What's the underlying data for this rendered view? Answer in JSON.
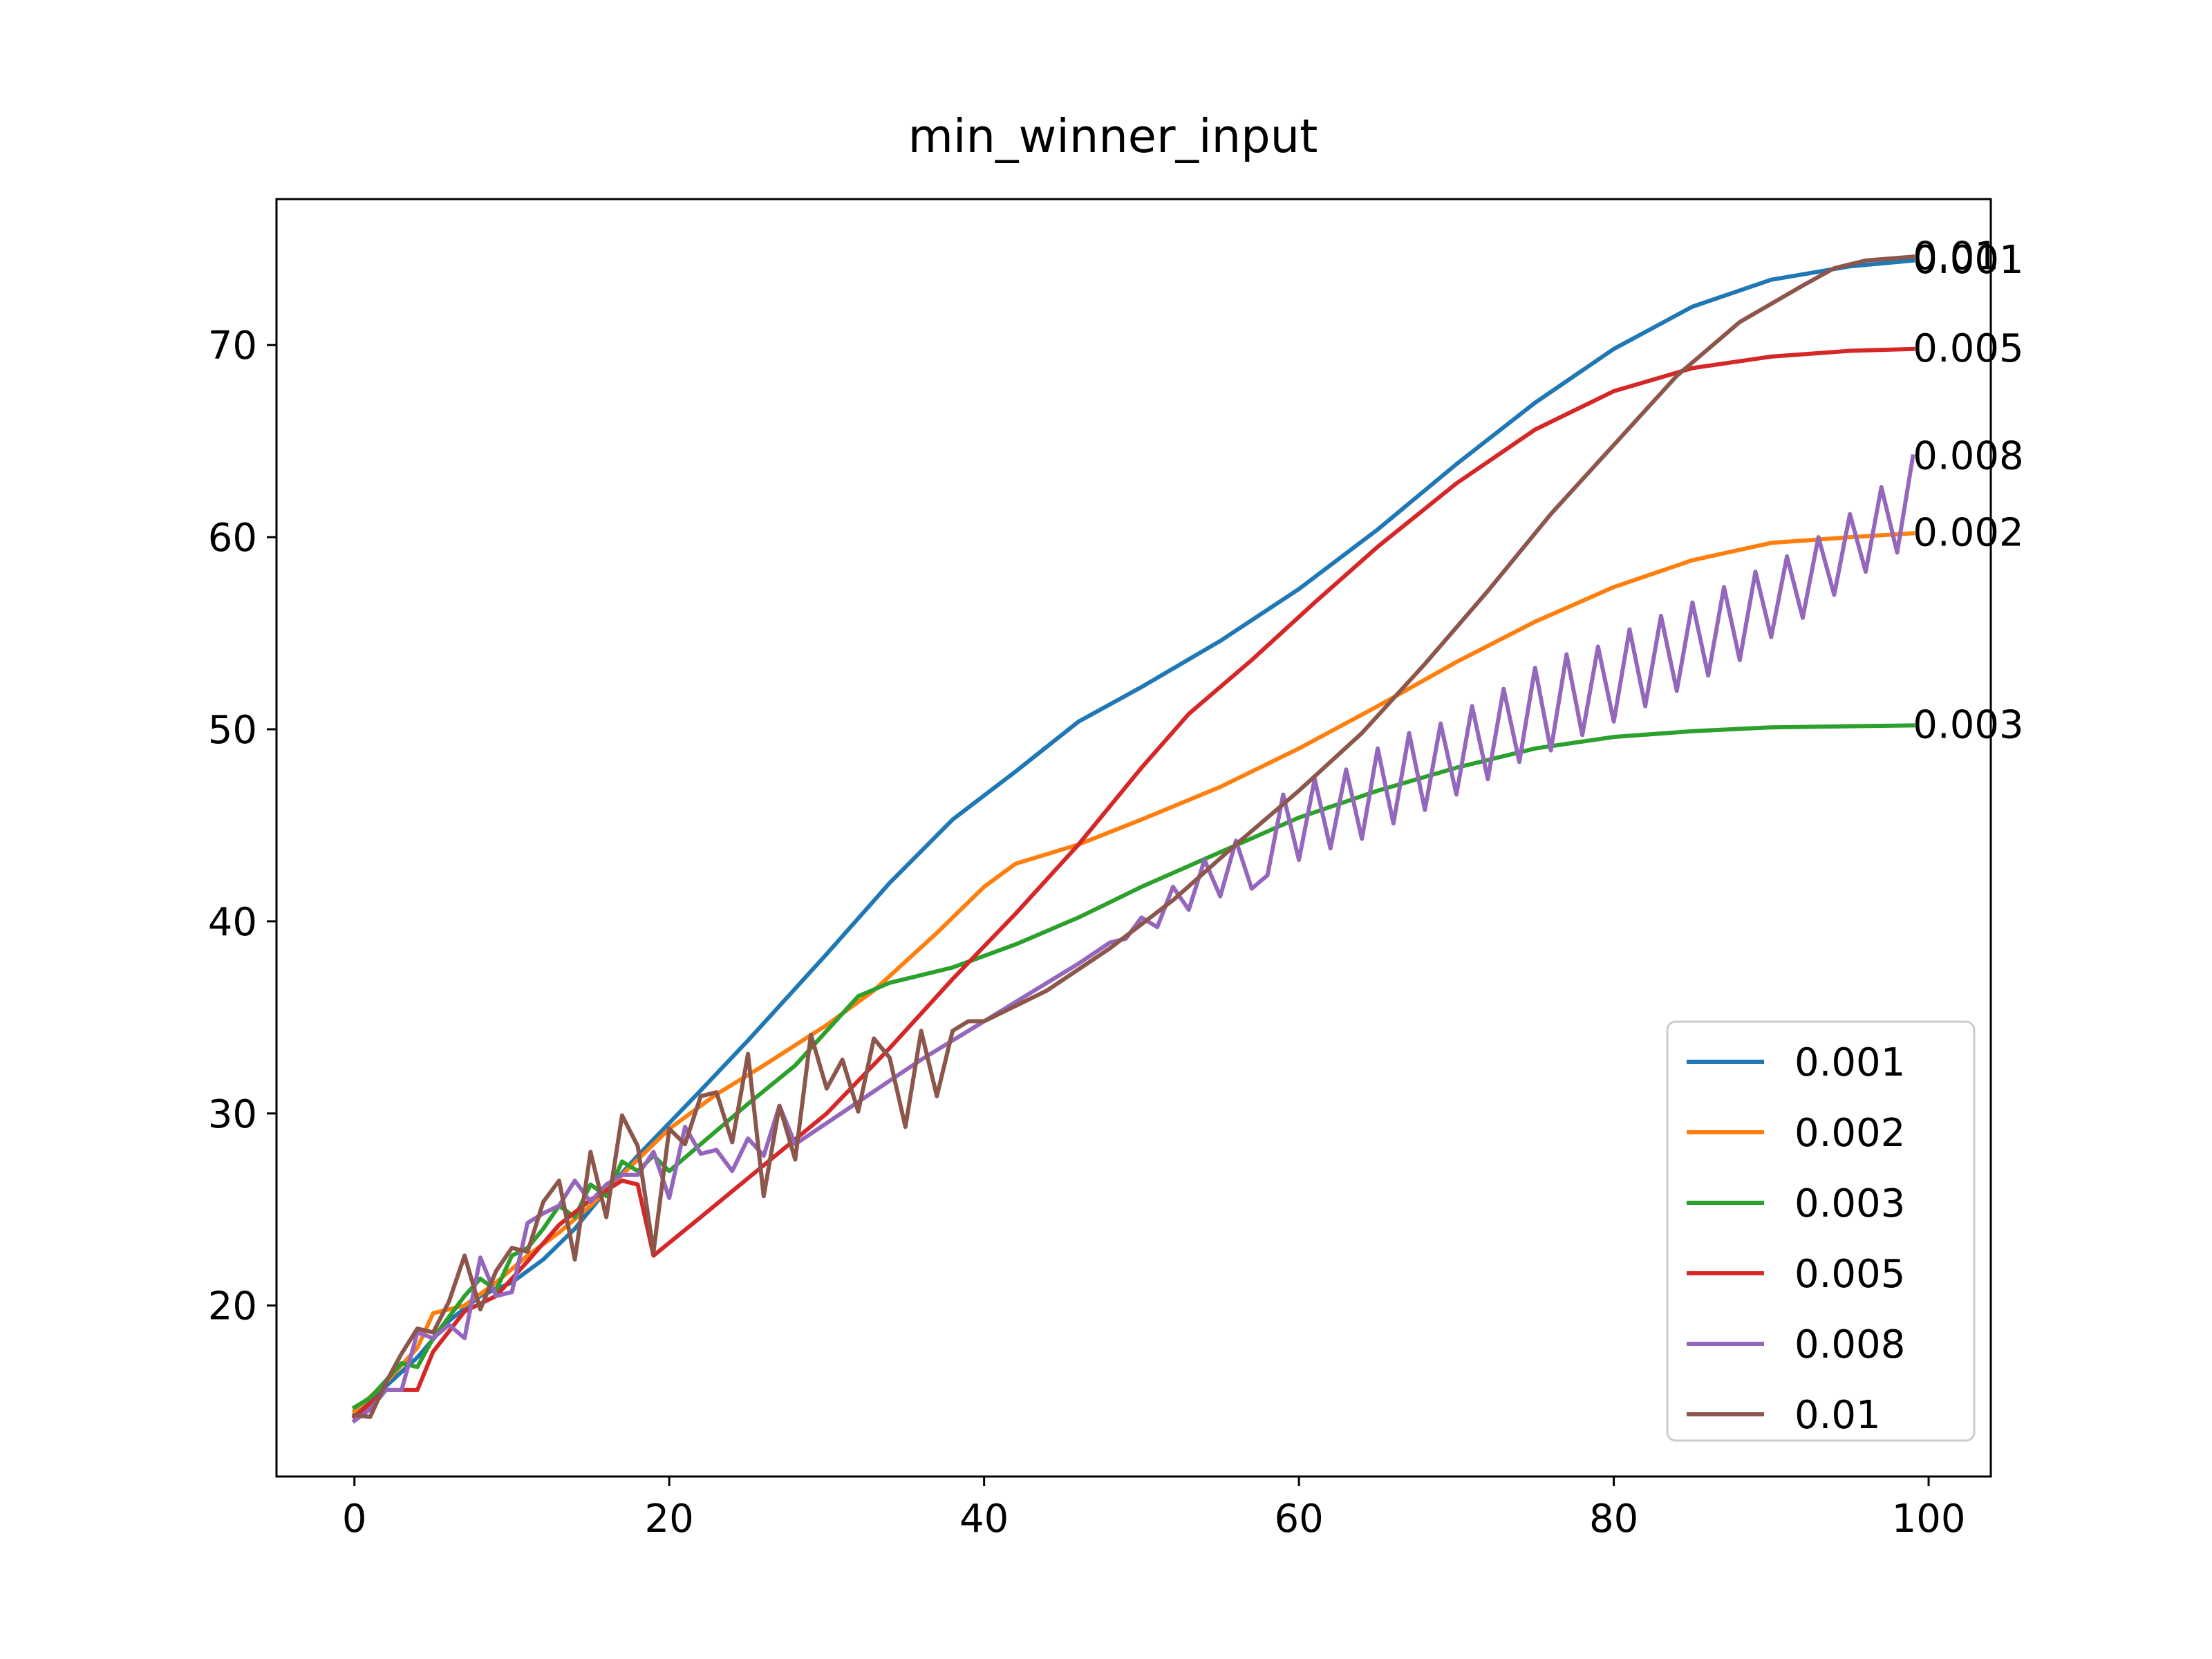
{
  "chart_data": {
    "type": "line",
    "title": "min_winner_input",
    "xlabel": "",
    "ylabel": "",
    "xlim": [
      -4.95,
      103.95
    ],
    "ylim": [
      11.1,
      77.6
    ],
    "xticks": [
      0,
      20,
      40,
      60,
      80,
      100
    ],
    "yticks": [
      20,
      30,
      40,
      50,
      60,
      70
    ],
    "xtick_labels": [
      "0",
      "20",
      "40",
      "60",
      "80",
      "100"
    ],
    "ytick_labels": [
      "20",
      "30",
      "40",
      "50",
      "60",
      "70"
    ],
    "grid": false,
    "legend_position": "lower-right",
    "series": [
      {
        "name": "0.001",
        "color": "#1f77b4",
        "end_label": "0.001",
        "points": [
          [
            0,
            14.3
          ],
          [
            2,
            15.8
          ],
          [
            4,
            17.3
          ],
          [
            6,
            19.2
          ],
          [
            8,
            20.5
          ],
          [
            10,
            21.2
          ],
          [
            12,
            22.4
          ],
          [
            14,
            24.0
          ],
          [
            16,
            26.0
          ],
          [
            18,
            27.8
          ],
          [
            20,
            29.5
          ],
          [
            22,
            31.2
          ],
          [
            25,
            33.8
          ],
          [
            30,
            38.3
          ],
          [
            34,
            42.0
          ],
          [
            38,
            45.3
          ],
          [
            42,
            47.8
          ],
          [
            46,
            50.4
          ],
          [
            50,
            52.2
          ],
          [
            55,
            54.6
          ],
          [
            60,
            57.3
          ],
          [
            65,
            60.4
          ],
          [
            70,
            63.8
          ],
          [
            75,
            67.0
          ],
          [
            80,
            69.8
          ],
          [
            85,
            72.0
          ],
          [
            90,
            73.4
          ],
          [
            95,
            74.1
          ],
          [
            99,
            74.4
          ]
        ]
      },
      {
        "name": "0.002",
        "color": "#ff7f0e",
        "end_label": "0.002",
        "points": [
          [
            0,
            14.5
          ],
          [
            2,
            16.0
          ],
          [
            4,
            17.8
          ],
          [
            5,
            19.6
          ],
          [
            7,
            20.0
          ],
          [
            9,
            21.2
          ],
          [
            11,
            22.6
          ],
          [
            13,
            23.8
          ],
          [
            15,
            25.2
          ],
          [
            18,
            27.6
          ],
          [
            20,
            29.2
          ],
          [
            23,
            31.0
          ],
          [
            26,
            32.5
          ],
          [
            30,
            34.6
          ],
          [
            33,
            36.4
          ],
          [
            37,
            39.4
          ],
          [
            40,
            41.8
          ],
          [
            42,
            43.0
          ],
          [
            46,
            44.0
          ],
          [
            50,
            45.3
          ],
          [
            55,
            47.0
          ],
          [
            60,
            49.0
          ],
          [
            65,
            51.2
          ],
          [
            70,
            53.5
          ],
          [
            75,
            55.6
          ],
          [
            80,
            57.4
          ],
          [
            85,
            58.8
          ],
          [
            90,
            59.7
          ],
          [
            95,
            60.0
          ],
          [
            99,
            60.2
          ]
        ]
      },
      {
        "name": "0.003",
        "color": "#2ca02c",
        "end_label": "0.003",
        "points": [
          [
            0,
            14.7
          ],
          [
            1,
            15.2
          ],
          [
            2,
            16.1
          ],
          [
            3,
            17.0
          ],
          [
            4,
            16.8
          ],
          [
            5,
            18.3
          ],
          [
            6,
            19.4
          ],
          [
            7,
            20.5
          ],
          [
            8,
            21.4
          ],
          [
            9,
            20.8
          ],
          [
            10,
            22.6
          ],
          [
            11,
            23.0
          ],
          [
            12,
            24.0
          ],
          [
            13,
            25.2
          ],
          [
            14,
            24.6
          ],
          [
            15,
            26.3
          ],
          [
            16,
            25.7
          ],
          [
            17,
            27.5
          ],
          [
            18,
            27.0
          ],
          [
            19,
            27.8
          ],
          [
            20,
            27.0
          ],
          [
            22,
            28.4
          ],
          [
            25,
            30.5
          ],
          [
            28,
            32.5
          ],
          [
            30,
            34.3
          ],
          [
            32,
            36.1
          ],
          [
            34,
            36.8
          ],
          [
            38,
            37.6
          ],
          [
            42,
            38.8
          ],
          [
            46,
            40.2
          ],
          [
            50,
            41.8
          ],
          [
            55,
            43.6
          ],
          [
            60,
            45.4
          ],
          [
            65,
            46.8
          ],
          [
            70,
            48.0
          ],
          [
            75,
            49.0
          ],
          [
            80,
            49.6
          ],
          [
            85,
            49.9
          ],
          [
            90,
            50.1
          ],
          [
            99,
            50.2
          ]
        ]
      },
      {
        "name": "0.005",
        "color": "#d62728",
        "end_label": "0.005",
        "points": [
          [
            0,
            14.2
          ],
          [
            2,
            15.6
          ],
          [
            4,
            15.6
          ],
          [
            5,
            17.6
          ],
          [
            7,
            19.7
          ],
          [
            9,
            20.5
          ],
          [
            11,
            22.3
          ],
          [
            13,
            24.2
          ],
          [
            15,
            25.5
          ],
          [
            17,
            26.5
          ],
          [
            18,
            26.3
          ],
          [
            19,
            22.6
          ],
          [
            22,
            24.6
          ],
          [
            26,
            27.3
          ],
          [
            30,
            30.0
          ],
          [
            34,
            33.4
          ],
          [
            38,
            37.0
          ],
          [
            42,
            40.4
          ],
          [
            46,
            44.0
          ],
          [
            50,
            48.0
          ],
          [
            53,
            50.8
          ],
          [
            57,
            53.6
          ],
          [
            61,
            56.6
          ],
          [
            65,
            59.5
          ],
          [
            70,
            62.8
          ],
          [
            75,
            65.6
          ],
          [
            80,
            67.6
          ],
          [
            85,
            68.8
          ],
          [
            90,
            69.4
          ],
          [
            95,
            69.7
          ],
          [
            99,
            69.8
          ]
        ]
      },
      {
        "name": "0.008",
        "color": "#9467bd",
        "end_label": "0.008",
        "points": [
          [
            0,
            14.0
          ],
          [
            1,
            14.6
          ],
          [
            2,
            15.6
          ],
          [
            3,
            15.6
          ],
          [
            4,
            18.6
          ],
          [
            5,
            18.3
          ],
          [
            6,
            19.0
          ],
          [
            7,
            18.3
          ],
          [
            8,
            22.5
          ],
          [
            9,
            20.5
          ],
          [
            10,
            20.7
          ],
          [
            11,
            24.3
          ],
          [
            12,
            24.8
          ],
          [
            13,
            25.2
          ],
          [
            14,
            26.5
          ],
          [
            15,
            25.4
          ],
          [
            16,
            26.3
          ],
          [
            17,
            26.8
          ],
          [
            18,
            26.8
          ],
          [
            19,
            28.0
          ],
          [
            20,
            25.6
          ],
          [
            21,
            29.3
          ],
          [
            22,
            27.9
          ],
          [
            23,
            28.1
          ],
          [
            24,
            27.0
          ],
          [
            25,
            28.7
          ],
          [
            26,
            27.8
          ],
          [
            27,
            30.4
          ],
          [
            28,
            28.4
          ],
          [
            30,
            29.5
          ],
          [
            32,
            30.6
          ],
          [
            34,
            31.7
          ],
          [
            36,
            32.8
          ],
          [
            38,
            33.8
          ],
          [
            40,
            34.8
          ],
          [
            42,
            35.8
          ],
          [
            44,
            36.8
          ],
          [
            46,
            37.8
          ],
          [
            48,
            38.9
          ],
          [
            49,
            39.1
          ],
          [
            50,
            40.2
          ],
          [
            51,
            39.7
          ],
          [
            52,
            41.8
          ],
          [
            53,
            40.6
          ],
          [
            54,
            43.2
          ],
          [
            55,
            41.3
          ],
          [
            56,
            44.2
          ],
          [
            57,
            41.7
          ],
          [
            58,
            42.4
          ],
          [
            59,
            46.6
          ],
          [
            60,
            43.2
          ],
          [
            61,
            47.4
          ],
          [
            62,
            43.8
          ],
          [
            63,
            47.9
          ],
          [
            64,
            44.3
          ],
          [
            65,
            49.0
          ],
          [
            66,
            45.1
          ],
          [
            67,
            49.8
          ],
          [
            68,
            45.8
          ],
          [
            69,
            50.3
          ],
          [
            70,
            46.6
          ],
          [
            71,
            51.2
          ],
          [
            72,
            47.4
          ],
          [
            73,
            52.1
          ],
          [
            74,
            48.3
          ],
          [
            75,
            53.2
          ],
          [
            76,
            48.9
          ],
          [
            77,
            53.9
          ],
          [
            78,
            49.7
          ],
          [
            79,
            54.3
          ],
          [
            80,
            50.4
          ],
          [
            81,
            55.2
          ],
          [
            82,
            51.2
          ],
          [
            83,
            55.9
          ],
          [
            84,
            52.0
          ],
          [
            85,
            56.6
          ],
          [
            86,
            52.8
          ],
          [
            87,
            57.4
          ],
          [
            88,
            53.6
          ],
          [
            89,
            58.2
          ],
          [
            90,
            54.8
          ],
          [
            91,
            59.0
          ],
          [
            92,
            55.8
          ],
          [
            93,
            60.0
          ],
          [
            94,
            57.0
          ],
          [
            95,
            61.2
          ],
          [
            96,
            58.2
          ],
          [
            97,
            62.6
          ],
          [
            98,
            59.2
          ],
          [
            99,
            64.2
          ]
        ]
      },
      {
        "name": "0.01",
        "color": "#8c564b",
        "end_label": "0.01",
        "points": [
          [
            0,
            14.3
          ],
          [
            1,
            14.2
          ],
          [
            2,
            16.0
          ],
          [
            3,
            17.5
          ],
          [
            4,
            18.8
          ],
          [
            5,
            18.6
          ],
          [
            6,
            20.2
          ],
          [
            7,
            22.6
          ],
          [
            8,
            19.8
          ],
          [
            9,
            21.8
          ],
          [
            10,
            23.0
          ],
          [
            11,
            22.8
          ],
          [
            12,
            25.4
          ],
          [
            13,
            26.5
          ],
          [
            14,
            22.4
          ],
          [
            15,
            28.0
          ],
          [
            16,
            24.6
          ],
          [
            17,
            29.9
          ],
          [
            18,
            28.3
          ],
          [
            19,
            22.8
          ],
          [
            20,
            29.2
          ],
          [
            21,
            28.4
          ],
          [
            22,
            30.9
          ],
          [
            23,
            31.1
          ],
          [
            24,
            28.5
          ],
          [
            25,
            33.1
          ],
          [
            26,
            25.7
          ],
          [
            27,
            30.4
          ],
          [
            28,
            27.6
          ],
          [
            29,
            34.1
          ],
          [
            30,
            31.3
          ],
          [
            31,
            32.8
          ],
          [
            32,
            30.1
          ],
          [
            33,
            33.9
          ],
          [
            34,
            32.9
          ],
          [
            35,
            29.3
          ],
          [
            36,
            34.3
          ],
          [
            37,
            30.9
          ],
          [
            38,
            34.3
          ],
          [
            39,
            34.8
          ],
          [
            40,
            34.8
          ],
          [
            44,
            36.4
          ],
          [
            48,
            38.6
          ],
          [
            52,
            41.1
          ],
          [
            56,
            44.0
          ],
          [
            60,
            46.8
          ],
          [
            64,
            49.8
          ],
          [
            68,
            53.4
          ],
          [
            72,
            57.2
          ],
          [
            76,
            61.2
          ],
          [
            80,
            64.8
          ],
          [
            84,
            68.4
          ],
          [
            88,
            71.2
          ],
          [
            92,
            73.1
          ],
          [
            94,
            74.0
          ],
          [
            96,
            74.4
          ],
          [
            99,
            74.6
          ]
        ]
      }
    ]
  }
}
